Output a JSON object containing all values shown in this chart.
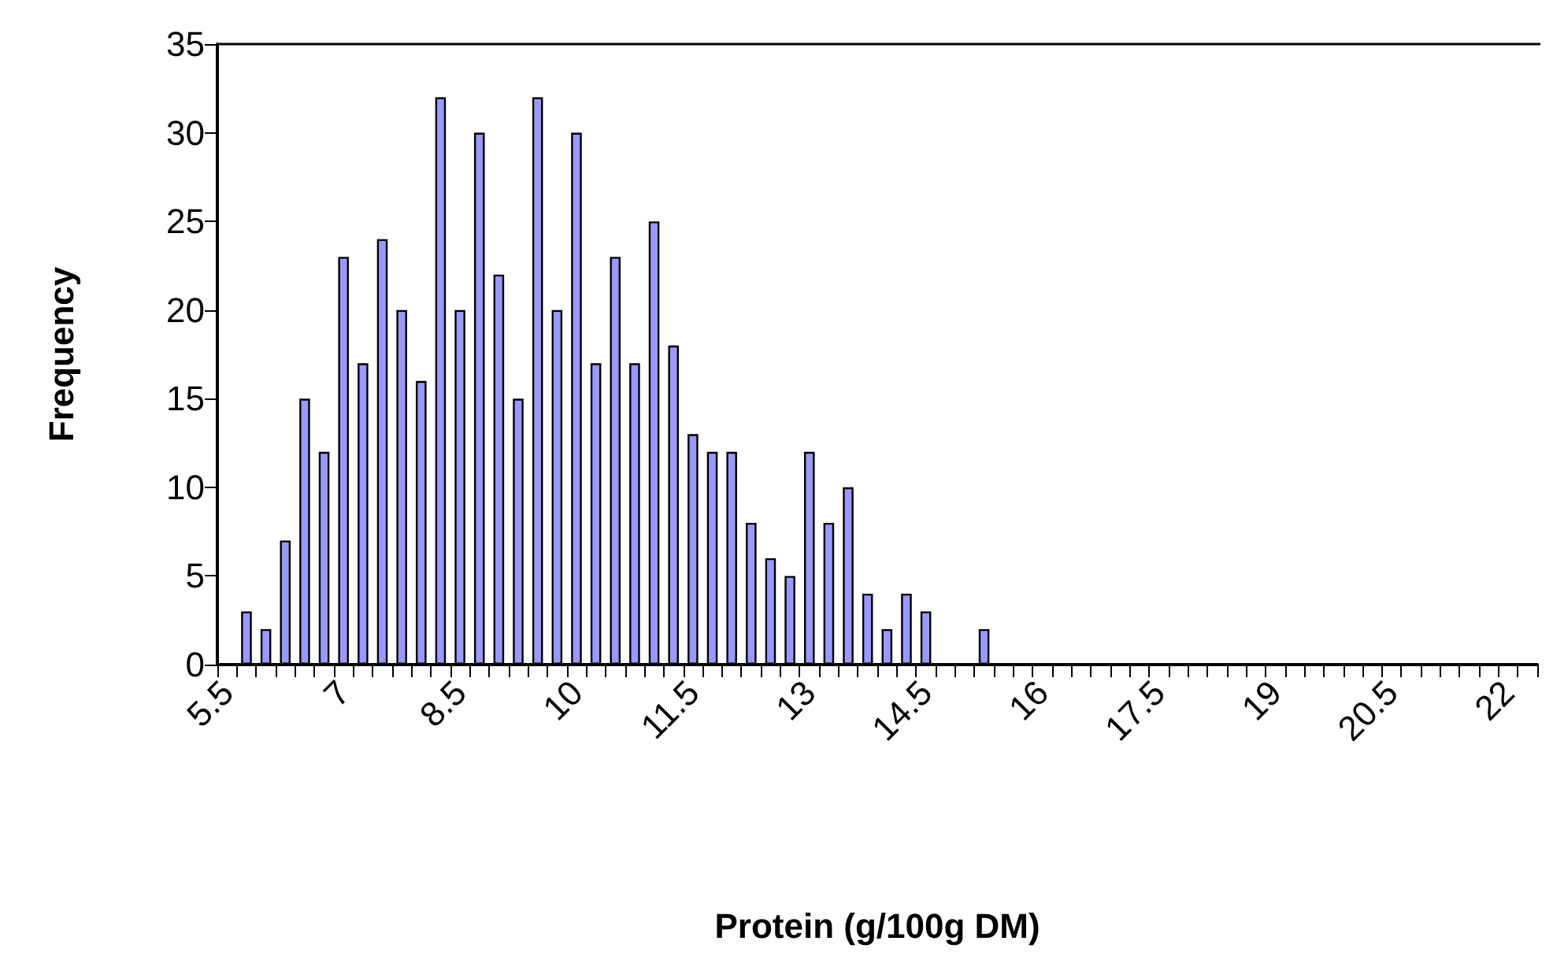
{
  "chart_data": {
    "type": "bar",
    "xlabel": "Protein (g/100g DM)",
    "ylabel": "Frequency",
    "categories": [
      "5.5",
      null,
      null,
      null,
      null,
      null,
      "7",
      null,
      null,
      null,
      null,
      null,
      "8.5",
      null,
      null,
      null,
      null,
      null,
      "10",
      null,
      null,
      null,
      null,
      null,
      "11.5",
      null,
      null,
      null,
      null,
      null,
      "13",
      null,
      null,
      null,
      null,
      null,
      "14.5",
      null,
      null,
      null,
      null,
      null,
      "16",
      null,
      null,
      null,
      null,
      null,
      "17.5",
      null,
      null,
      null,
      null,
      null,
      "19",
      null,
      null,
      null,
      null,
      null,
      "20.5",
      null,
      null,
      null,
      null,
      null,
      "22",
      null
    ],
    "values": [
      0,
      3,
      2,
      7,
      15,
      12,
      23,
      17,
      24,
      20,
      16,
      32,
      20,
      30,
      22,
      15,
      32,
      20,
      30,
      17,
      23,
      17,
      25,
      18,
      13,
      12,
      12,
      8,
      6,
      5,
      12,
      8,
      10,
      4,
      2,
      4,
      3,
      0,
      0,
      2,
      0,
      0,
      0,
      0,
      0,
      0,
      0,
      0,
      0,
      0,
      0,
      0,
      0,
      0,
      0,
      0,
      0,
      0,
      0,
      0,
      0,
      0,
      0,
      0,
      0,
      0,
      0,
      0
    ],
    "color": "#9999ff",
    "ylim": [
      0,
      35
    ],
    "yticks": [
      0,
      5,
      10,
      15,
      20,
      25,
      30,
      35
    ],
    "grid": false
  }
}
